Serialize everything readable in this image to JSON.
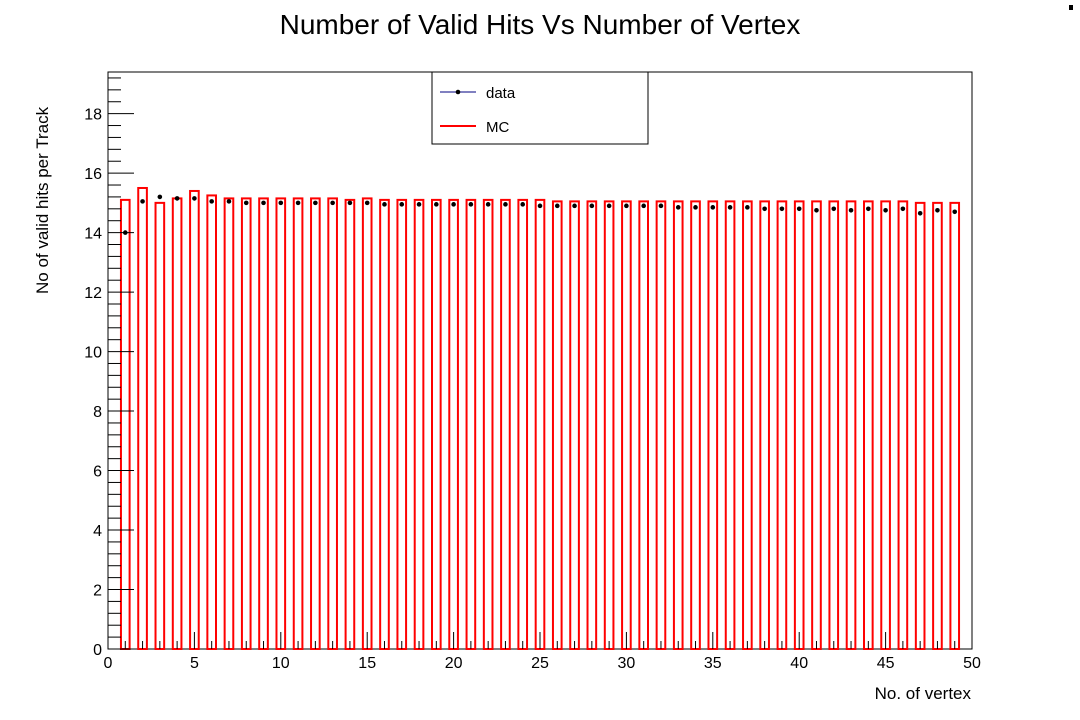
{
  "chart_data": {
    "type": "bar",
    "title": "Number of Valid Hits Vs Number of Vertex",
    "xlabel": "No. of vertex",
    "ylabel": "No of valid hits per Track",
    "xlim": [
      0,
      50
    ],
    "ylim": [
      0,
      19.4
    ],
    "x_ticks": [
      0,
      5,
      10,
      15,
      20,
      25,
      30,
      35,
      40,
      45,
      50
    ],
    "y_ticks": [
      0,
      2,
      4,
      6,
      8,
      10,
      12,
      14,
      16,
      18
    ],
    "grid": false,
    "legend_position": "top-center",
    "bar_width_fraction": 0.5,
    "x": [
      1,
      2,
      3,
      4,
      5,
      6,
      7,
      8,
      9,
      10,
      11,
      12,
      13,
      14,
      15,
      16,
      17,
      18,
      19,
      20,
      21,
      22,
      23,
      24,
      25,
      26,
      27,
      28,
      29,
      30,
      31,
      32,
      33,
      34,
      35,
      36,
      37,
      38,
      39,
      40,
      41,
      42,
      43,
      44,
      45,
      46,
      47,
      48,
      49
    ],
    "series": [
      {
        "name": "MC",
        "style": "bar-outline",
        "color": "#ff0000",
        "values": [
          15.1,
          15.5,
          15.0,
          15.15,
          15.4,
          15.25,
          15.15,
          15.15,
          15.15,
          15.15,
          15.15,
          15.15,
          15.15,
          15.1,
          15.15,
          15.1,
          15.1,
          15.1,
          15.1,
          15.1,
          15.1,
          15.1,
          15.1,
          15.1,
          15.1,
          15.05,
          15.05,
          15.05,
          15.05,
          15.05,
          15.05,
          15.05,
          15.05,
          15.05,
          15.05,
          15.05,
          15.05,
          15.05,
          15.05,
          15.05,
          15.05,
          15.05,
          15.05,
          15.05,
          15.05,
          15.05,
          15.0,
          15.0,
          15.0
        ]
      },
      {
        "name": "data",
        "style": "markers",
        "color": "#000000",
        "line_color": "#000080",
        "values": [
          14.0,
          15.05,
          15.2,
          15.15,
          15.15,
          15.05,
          15.05,
          15.0,
          15.0,
          15.0,
          15.0,
          15.0,
          15.0,
          15.0,
          15.0,
          14.95,
          14.95,
          14.95,
          14.95,
          14.95,
          14.95,
          14.95,
          14.95,
          14.95,
          14.9,
          14.9,
          14.9,
          14.9,
          14.9,
          14.9,
          14.9,
          14.9,
          14.85,
          14.85,
          14.85,
          14.85,
          14.85,
          14.8,
          14.8,
          14.8,
          14.75,
          14.8,
          14.75,
          14.8,
          14.75,
          14.8,
          14.65,
          14.75,
          14.7
        ]
      }
    ]
  }
}
